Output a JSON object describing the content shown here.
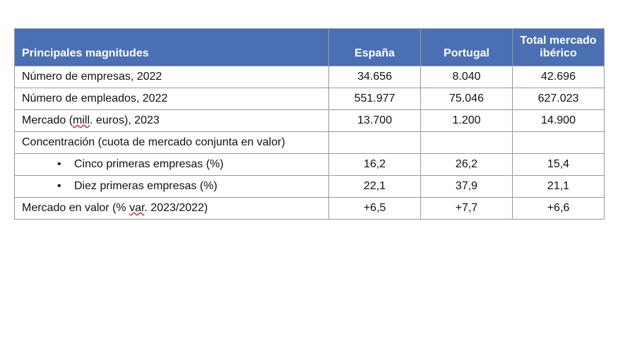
{
  "table": {
    "header_bg": "#4a6fb3",
    "header_fg": "#ffffff",
    "border_color": "#999999",
    "columns": [
      {
        "label": "Principales magnitudes",
        "align": "left"
      },
      {
        "label": "España",
        "align": "center"
      },
      {
        "label": "Portugal",
        "align": "center"
      },
      {
        "label": "Total mercado ibérico",
        "align": "center"
      }
    ],
    "rows": [
      {
        "label_plain": "Número de empresas, 2022",
        "label_squiggle": "",
        "label_suffix": "",
        "sub": false,
        "spain": "34.656",
        "portugal": "8.040",
        "total": "42.696"
      },
      {
        "label_plain": "Número de empleados, 2022",
        "label_squiggle": "",
        "label_suffix": "",
        "sub": false,
        "spain": "551.977",
        "portugal": "75.046",
        "total": "627.023"
      },
      {
        "label_plain": "Mercado (",
        "label_squiggle": "mill",
        "label_suffix": ". euros), 2023",
        "sub": false,
        "spain": "13.700",
        "portugal": "1.200",
        "total": "14.900"
      },
      {
        "label_plain": "Concentración (cuota de mercado conjunta en valor)",
        "label_squiggle": "",
        "label_suffix": "",
        "sub": false,
        "spain": "",
        "portugal": "",
        "total": ""
      },
      {
        "label_plain": "Cinco primeras empresas (%)",
        "label_squiggle": "",
        "label_suffix": "",
        "sub": true,
        "spain": "16,2",
        "portugal": "26,2",
        "total": "15,4"
      },
      {
        "label_plain": "Diez primeras empresas (%)",
        "label_squiggle": "",
        "label_suffix": "",
        "sub": true,
        "spain": "22,1",
        "portugal": "37,9",
        "total": "21,1"
      },
      {
        "label_plain": "Mercado en valor (% ",
        "label_squiggle": "var",
        "label_suffix": ". 2023/2022)",
        "sub": false,
        "spain": "+6,5",
        "portugal": "+7,7",
        "total": "+6,6"
      }
    ]
  }
}
